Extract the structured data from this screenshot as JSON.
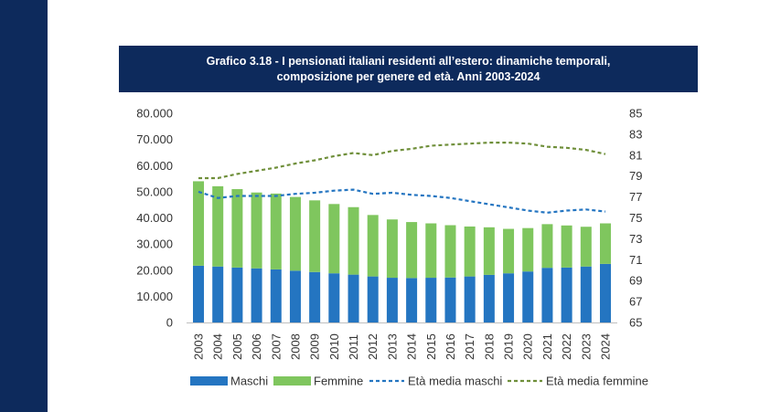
{
  "title": {
    "line1": "Grafico 3.18 - I pensionati italiani residenti all’estero: dinamiche temporali,",
    "line2": "composizione per genere ed età. Anni 2003-2024"
  },
  "colors": {
    "frame": "#0d2a5c",
    "maschi": "#2475c1",
    "femmine": "#7fc65e",
    "eta_maschi": "#2475c1",
    "eta_femmine": "#6f8f3a"
  },
  "chart_data": {
    "type": "bar",
    "stacked": true,
    "categories": [
      "2003",
      "2004",
      "2005",
      "2006",
      "2007",
      "2008",
      "2009",
      "2010",
      "2011",
      "2012",
      "2013",
      "2014",
      "2015",
      "2016",
      "2017",
      "2018",
      "2019",
      "2020",
      "2021",
      "2022",
      "2023",
      "2024"
    ],
    "series": [
      {
        "name": "Maschi",
        "type": "bar",
        "axis": "left",
        "values": [
          21700,
          21400,
          21000,
          20700,
          20300,
          19800,
          19300,
          18800,
          18300,
          17600,
          17100,
          17000,
          17100,
          17200,
          17600,
          18200,
          18800,
          19500,
          20900,
          21000,
          21400,
          22400
        ]
      },
      {
        "name": "Femmine",
        "type": "bar",
        "axis": "left",
        "values": [
          32300,
          30700,
          30000,
          29000,
          29000,
          28200,
          27400,
          26500,
          25800,
          23500,
          22300,
          21400,
          20800,
          20000,
          19100,
          18200,
          17000,
          16600,
          16700,
          16100,
          15200,
          15500
        ]
      },
      {
        "name": "Età media maschi",
        "type": "line",
        "axis": "right",
        "values": [
          77.5,
          76.9,
          77.1,
          77.1,
          77.1,
          77.3,
          77.4,
          77.6,
          77.7,
          77.3,
          77.4,
          77.2,
          77.1,
          76.9,
          76.6,
          76.3,
          76.0,
          75.7,
          75.5,
          75.7,
          75.8,
          75.6
        ]
      },
      {
        "name": "Età media femmine",
        "type": "line",
        "axis": "right",
        "values": [
          78.8,
          78.8,
          79.2,
          79.5,
          79.8,
          80.2,
          80.5,
          80.9,
          81.2,
          81.0,
          81.4,
          81.6,
          81.9,
          82.0,
          82.1,
          82.2,
          82.2,
          82.1,
          81.8,
          81.7,
          81.5,
          81.1
        ]
      }
    ],
    "y_left": {
      "min": 0,
      "max": 80000,
      "ticks": [
        "0",
        "10.000",
        "20.000",
        "30.000",
        "40.000",
        "50.000",
        "60.000",
        "70.000",
        "80.000"
      ]
    },
    "y_right": {
      "min": 65,
      "max": 85,
      "ticks": [
        "65",
        "67",
        "69",
        "71",
        "73",
        "75",
        "77",
        "79",
        "81",
        "83",
        "85"
      ]
    },
    "grid": false,
    "legend_position": "bottom",
    "legend": [
      "Maschi",
      "Femmine",
      "Età media maschi",
      "Età media femmine"
    ]
  }
}
